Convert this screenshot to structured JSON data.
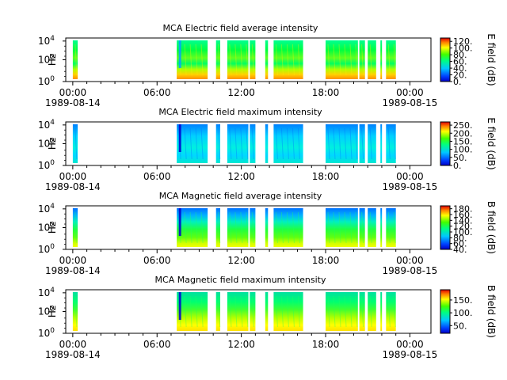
{
  "chart_data": [
    {
      "type": "heatmap",
      "title": "MCA  Electric field average intensity",
      "ylabel": "Hz",
      "y_scale": "log",
      "y_ticks": [
        {
          "base": "10",
          "exp": "0"
        },
        {
          "base": "10",
          "exp": "2"
        },
        {
          "base": "10",
          "exp": "4"
        }
      ],
      "x_ticks": [
        "00:00",
        "06:00",
        "12:00",
        "18:00",
        "00:00"
      ],
      "x_dates": [
        "1989-08-14",
        "1989-08-15"
      ],
      "colorbar_label": "E field (dB)",
      "colorbar_ticks": [
        "0.",
        "20.",
        "40.",
        "60.",
        "80.",
        "100.",
        "120."
      ],
      "colorbar_range": [
        0,
        130
      ],
      "data_intervals_hours": [
        [
          0.0,
          0.35
        ],
        [
          7.4,
          9.6
        ],
        [
          10.2,
          10.5
        ],
        [
          11.0,
          12.5
        ],
        [
          12.6,
          13.0
        ],
        [
          13.7,
          13.9
        ],
        [
          14.3,
          16.4
        ],
        [
          18.0,
          20.3
        ],
        [
          20.4,
          20.8
        ],
        [
          21.0,
          21.6
        ],
        [
          21.9,
          22.0
        ],
        [
          22.3,
          23.0
        ]
      ],
      "color_profile": "green-blue top, yellow-orange bottom"
    },
    {
      "type": "heatmap",
      "title": "MCA  Electric field maximum intensity",
      "ylabel": "Hz",
      "y_scale": "log",
      "y_ticks": [
        {
          "base": "10",
          "exp": "0"
        },
        {
          "base": "10",
          "exp": "2"
        },
        {
          "base": "10",
          "exp": "4"
        }
      ],
      "x_ticks": [
        "00:00",
        "06:00",
        "12:00",
        "18:00",
        "00:00"
      ],
      "x_dates": [
        "1989-08-14",
        "1989-08-15"
      ],
      "colorbar_label": "E field (dB)",
      "colorbar_ticks": [
        "0.",
        "50.",
        "100.",
        "150.",
        "200.",
        "250."
      ],
      "colorbar_range": [
        0,
        270
      ],
      "data_intervals_hours": [
        [
          0.0,
          0.35
        ],
        [
          7.4,
          9.6
        ],
        [
          10.2,
          10.5
        ],
        [
          11.0,
          12.5
        ],
        [
          12.6,
          13.0
        ],
        [
          13.7,
          13.9
        ],
        [
          14.3,
          16.4
        ],
        [
          18.0,
          20.3
        ],
        [
          20.4,
          20.8
        ],
        [
          21.0,
          21.6
        ],
        [
          21.9,
          22.0
        ],
        [
          22.3,
          23.0
        ]
      ],
      "color_profile": "mostly cyan-blue"
    },
    {
      "type": "heatmap",
      "title": "MCA  Magnetic field average intensity",
      "ylabel": "Hz",
      "y_scale": "log",
      "y_ticks": [
        {
          "base": "10",
          "exp": "0"
        },
        {
          "base": "10",
          "exp": "2"
        },
        {
          "base": "10",
          "exp": "4"
        }
      ],
      "x_ticks": [
        "00:00",
        "06:00",
        "12:00",
        "18:00",
        "00:00"
      ],
      "x_dates": [
        "1989-08-14",
        "1989-08-15"
      ],
      "colorbar_label": "B field (dB)",
      "colorbar_ticks": [
        "40.",
        "60.",
        "80.",
        "100.",
        "120.",
        "140.",
        "160.",
        "180."
      ],
      "colorbar_range": [
        40,
        190
      ],
      "data_intervals_hours": [
        [
          0.0,
          0.35
        ],
        [
          7.4,
          9.6
        ],
        [
          10.2,
          10.5
        ],
        [
          11.0,
          12.5
        ],
        [
          12.6,
          13.0
        ],
        [
          13.7,
          13.9
        ],
        [
          14.3,
          16.4
        ],
        [
          18.0,
          20.3
        ],
        [
          20.4,
          20.8
        ],
        [
          21.0,
          21.6
        ],
        [
          21.9,
          22.0
        ],
        [
          22.3,
          23.0
        ]
      ],
      "color_profile": "blue top, green middle, yellow bottom"
    },
    {
      "type": "heatmap",
      "title": "MCA  Magnetic field maximum intensity",
      "ylabel": "Hz",
      "y_scale": "log",
      "y_ticks": [
        {
          "base": "10",
          "exp": "0"
        },
        {
          "base": "10",
          "exp": "2"
        },
        {
          "base": "10",
          "exp": "4"
        }
      ],
      "x_ticks": [
        "00:00",
        "06:00",
        "12:00",
        "18:00",
        "00:00"
      ],
      "x_dates": [
        "1989-08-14",
        "1989-08-15"
      ],
      "colorbar_label": "B field (dB)",
      "colorbar_ticks": [
        "50.",
        "100.",
        "150."
      ],
      "colorbar_range": [
        20,
        190
      ],
      "data_intervals_hours": [
        [
          0.0,
          0.35
        ],
        [
          7.4,
          9.6
        ],
        [
          10.2,
          10.5
        ],
        [
          11.0,
          12.5
        ],
        [
          12.6,
          13.0
        ],
        [
          13.7,
          13.9
        ],
        [
          14.3,
          16.4
        ],
        [
          18.0,
          20.3
        ],
        [
          20.4,
          20.8
        ],
        [
          21.0,
          21.6
        ],
        [
          21.9,
          22.0
        ],
        [
          22.3,
          23.0
        ]
      ],
      "color_profile": "green top, yellow bottom"
    }
  ]
}
